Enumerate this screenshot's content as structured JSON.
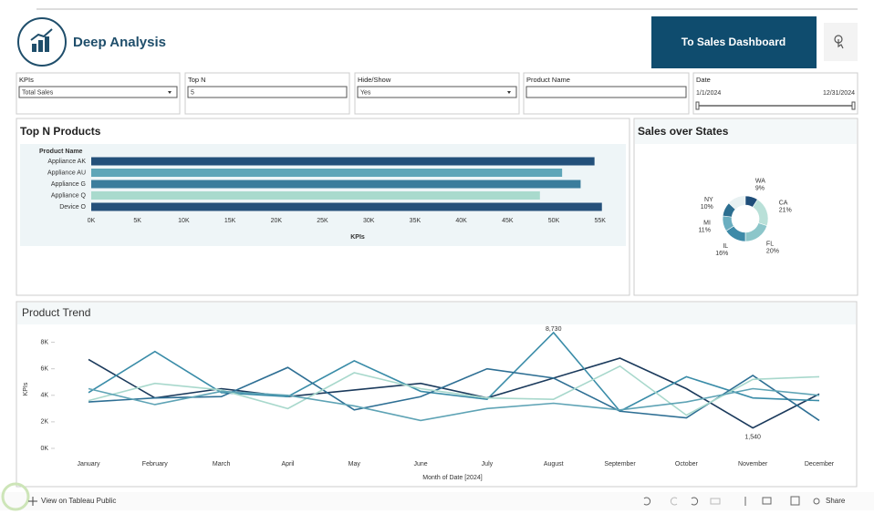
{
  "header": {
    "title": "Deep Analysis",
    "button": "To Sales Dashboard"
  },
  "filters": [
    {
      "label": "KPIs",
      "value": "Total Sales"
    },
    {
      "label": "Top N",
      "value": 5
    },
    {
      "label": "Hide/Show",
      "value": "Yes"
    },
    {
      "label": "Product Name"
    },
    {
      "label": "Date",
      "start": "1/1/2024",
      "end": "12/31/2024"
    }
  ],
  "chart_data": [
    {
      "type": "bar",
      "orientation": "horizontal",
      "title": "Top N Products",
      "category_label": "Product Name",
      "x_label": "KPIs",
      "categories": [
        "Appliance AK",
        "Appliance AU",
        "Appliance G",
        "Appliance Q",
        "Device O"
      ],
      "values": [
        54400,
        50900,
        52900,
        48500,
        55200
      ],
      "colors": [
        "#23507a",
        "#5fa6b8",
        "#3b7d9c",
        "#a9dacd",
        "#25507a"
      ],
      "xlim": [
        0,
        57000
      ],
      "xticks": [
        {
          "value": 0,
          "label": "0K"
        },
        {
          "value": 5000,
          "label": "5K"
        },
        {
          "value": 10000,
          "label": "10K"
        },
        {
          "value": 15000,
          "label": "15K"
        },
        {
          "value": 20000,
          "label": "20K"
        },
        {
          "value": 25000,
          "label": "25K"
        },
        {
          "value": 30000,
          "label": "30K"
        },
        {
          "value": 35000,
          "label": "35K"
        },
        {
          "value": 40000,
          "label": "40K"
        },
        {
          "value": 45000,
          "label": "45K"
        },
        {
          "value": 50000,
          "label": "50K"
        },
        {
          "value": 55000,
          "label": "55K"
        }
      ]
    },
    {
      "type": "pie",
      "donut": true,
      "title": "Sales over States",
      "categories": [
        "WA",
        "CA",
        "FL",
        "IL",
        "MI",
        "NY"
      ],
      "values": [
        9,
        21,
        20,
        16,
        11,
        10
      ],
      "value_labels": [
        "9%",
        "21%",
        "20%",
        "16%",
        "11%",
        "10%"
      ],
      "colors": [
        "#1f4e79",
        "#b9e0d8",
        "#8cc6ca",
        "#3d8aa8",
        "#6aaec0",
        "#2c6e90"
      ]
    },
    {
      "type": "line",
      "title": "Product Trend",
      "x_label": "Month of Date [2024]",
      "y_label": "KPIs",
      "categories": [
        "January",
        "February",
        "March",
        "April",
        "May",
        "June",
        "July",
        "August",
        "September",
        "October",
        "November",
        "December"
      ],
      "ylim": [
        0,
        9000
      ],
      "yticks": [
        {
          "value": 0,
          "label": "0K"
        },
        {
          "value": 2000,
          "label": "2K"
        },
        {
          "value": 4000,
          "label": "4K"
        },
        {
          "value": 6000,
          "label": "6K"
        },
        {
          "value": 8000,
          "label": "8K"
        }
      ],
      "series": [
        {
          "color": "#1b3a5c",
          "values": [
            6700,
            3800,
            4500,
            3900,
            4400,
            4900,
            3800,
            5300,
            6800,
            4500,
            1540,
            4100
          ],
          "value_labels": [
            null,
            null,
            null,
            null,
            null,
            null,
            null,
            null,
            null,
            null,
            "1,540",
            null
          ]
        },
        {
          "color": "#3a8ca8",
          "values": [
            4200,
            7300,
            4200,
            3900,
            6600,
            4300,
            3700,
            8730,
            2800,
            5400,
            3800,
            3600
          ],
          "value_labels": [
            null,
            null,
            null,
            null,
            null,
            null,
            null,
            "8,730",
            null,
            null,
            null,
            null
          ]
        },
        {
          "color": "#2e6f94",
          "values": [
            3500,
            3800,
            3900,
            6100,
            2900,
            3900,
            6000,
            5300,
            2800,
            2300,
            5500,
            2100
          ]
        },
        {
          "color": "#a8d8cc",
          "values": [
            3600,
            4900,
            4400,
            3000,
            5700,
            4500,
            3800,
            3700,
            6200,
            2500,
            5200,
            5400
          ]
        },
        {
          "color": "#5ea3b5",
          "values": [
            4500,
            3300,
            4300,
            4000,
            3200,
            2100,
            3000,
            3400,
            2900,
            3500,
            4500,
            4000
          ]
        }
      ]
    }
  ],
  "footer": {
    "link": "View on Tableau Public",
    "share": "Share"
  }
}
